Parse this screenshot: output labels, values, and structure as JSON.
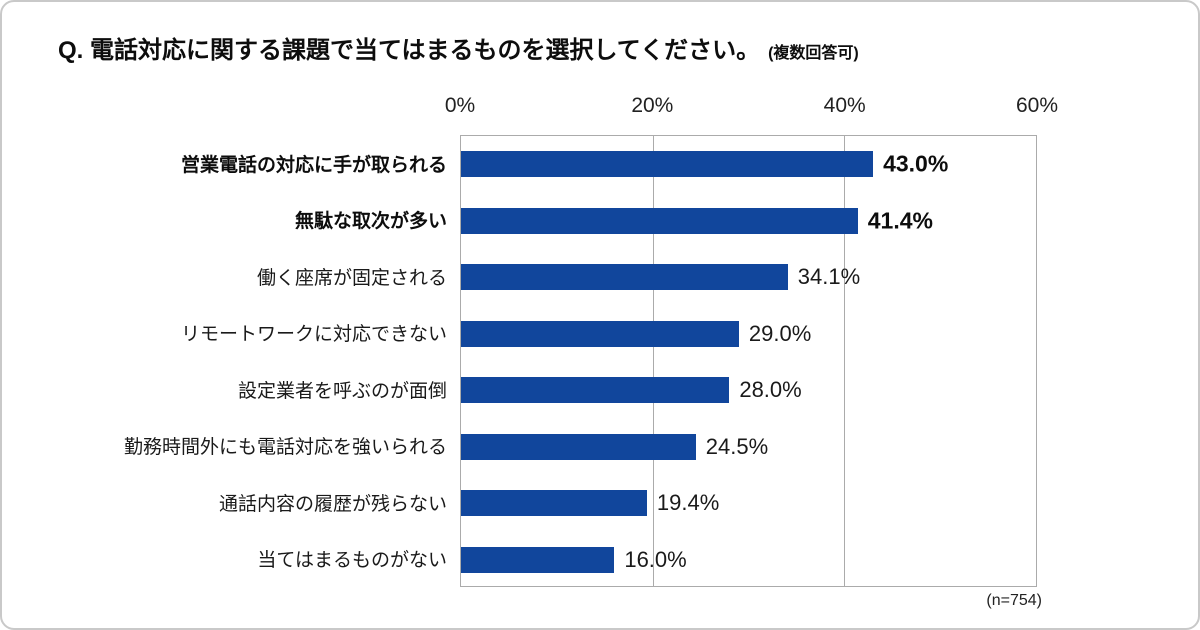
{
  "chart_data": {
    "type": "bar",
    "orientation": "horizontal",
    "title": "Q. 電話対応に関する課題で当てはまるものを選択してください。",
    "title_note": "(複数回答可)",
    "sample_note": "(n=754)",
    "categories": [
      "営業電話の対応に手が取られる",
      "無駄な取次が多い",
      "働く座席が固定される",
      "リモートワークに対応できない",
      "設定業者を呼ぶのが面倒",
      "勤務時間外にも電話対応を強いられる",
      "通話内容の履歴が残らない",
      "当てはまるものがない"
    ],
    "values": [
      43.0,
      41.4,
      34.1,
      29.0,
      28.0,
      24.5,
      19.4,
      16.0
    ],
    "value_labels": [
      "43.0%",
      "41.4%",
      "34.1%",
      "29.0%",
      "28.0%",
      "24.5%",
      "19.4%",
      "16.0%"
    ],
    "emphasized": [
      true,
      true,
      false,
      false,
      false,
      false,
      false,
      false
    ],
    "xlim": [
      0,
      60
    ],
    "x_ticks": [
      {
        "label": "0%",
        "value": 0
      },
      {
        "label": "20%",
        "value": 20
      },
      {
        "label": "40%",
        "value": 40
      },
      {
        "label": "60%",
        "value": 60
      }
    ],
    "axis_position": "top",
    "grid": true,
    "legend": false,
    "bar_color": "#11469c",
    "grid_color": "#ababab",
    "text_color": "#111111"
  }
}
